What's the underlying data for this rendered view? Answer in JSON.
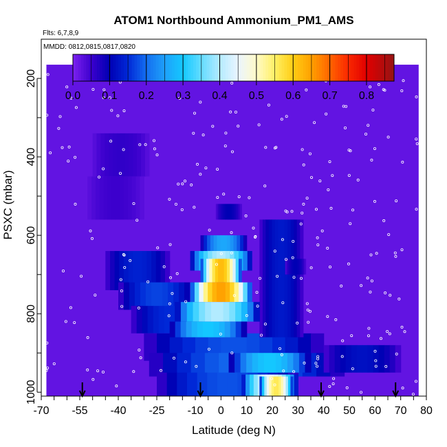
{
  "chart_data": {
    "type": "heatmap",
    "title": "ATOM1 Northbound Ammonium_PM1_AMS",
    "flights_note": "Flts: 6,7,8,9",
    "dates_note": "MMDD: 0812,0815,0817,0820",
    "xlabel": "Latitude (deg N)",
    "ylabel": "PSXC (mbar)",
    "xlim": [
      -70,
      80
    ],
    "ylim": [
      1010,
      100
    ],
    "x_ticks": [
      "-70",
      "-55",
      "-40",
      "-25",
      "-10",
      "0",
      "10",
      "20",
      "30",
      "40",
      "50",
      "60",
      "70",
      "80"
    ],
    "y_ticks": [
      "200",
      "400",
      "600",
      "800",
      "1000"
    ],
    "colorbar": {
      "ticks": [
        "0.0",
        "0.1",
        "0.2",
        "0.3",
        "0.4",
        "0.5",
        "0.6",
        "0.7",
        "0.8"
      ],
      "range": [
        0,
        0.875
      ]
    },
    "background_value": 0.02,
    "field_extent": {
      "lat": [
        -68,
        77
      ],
      "psxc": [
        165,
        1010
      ]
    },
    "arrows_lat": [
      -54,
      -8,
      39,
      68
    ],
    "regions": [
      {
        "lat": [
          -50,
          -28
        ],
        "p": [
          340,
          450
        ],
        "v": 0.06
      },
      {
        "lat": [
          -52,
          -30
        ],
        "p": [
          450,
          560
        ],
        "v": 0.05
      },
      {
        "lat": [
          -45,
          -20
        ],
        "p": [
          640,
          740
        ],
        "v": 0.14
      },
      {
        "lat": [
          -40,
          -10
        ],
        "p": [
          720,
          790
        ],
        "v": 0.17
      },
      {
        "lat": [
          -35,
          -5
        ],
        "p": [
          780,
          850
        ],
        "v": 0.15
      },
      {
        "lat": [
          -30,
          40
        ],
        "p": [
          850,
          920
        ],
        "v": 0.18
      },
      {
        "lat": [
          -28,
          48
        ],
        "p": [
          900,
          960
        ],
        "v": 0.2
      },
      {
        "lat": [
          -25,
          30
        ],
        "p": [
          950,
          1010
        ],
        "v": 0.18
      },
      {
        "lat": [
          40,
          70
        ],
        "p": [
          880,
          950
        ],
        "v": 0.12
      },
      {
        "lat": [
          -2,
          8
        ],
        "p": [
          520,
          560
        ],
        "v": 0.1
      },
      {
        "lat": [
          15,
          32
        ],
        "p": [
          560,
          860
        ],
        "v": 0.13
      },
      {
        "lat": [
          -8,
          10
        ],
        "p": [
          600,
          650
        ],
        "v": 0.26
      },
      {
        "lat": [
          -12,
          12
        ],
        "p": [
          640,
          690
        ],
        "v": 0.4
      },
      {
        "lat": [
          -8,
          8
        ],
        "p": [
          660,
          720
        ],
        "v": 0.62
      },
      {
        "lat": [
          -12,
          12
        ],
        "p": [
          720,
          770
        ],
        "v": 0.65
      },
      {
        "lat": [
          -18,
          15
        ],
        "p": [
          770,
          820
        ],
        "v": 0.4
      },
      {
        "lat": [
          -20,
          10
        ],
        "p": [
          820,
          860
        ],
        "v": 0.3
      },
      {
        "lat": [
          3,
          35
        ],
        "p": [
          900,
          950
        ],
        "v": 0.3
      },
      {
        "lat": [
          8,
          30
        ],
        "p": [
          955,
          1010
        ],
        "v": 0.45
      },
      {
        "lat": [
          15,
          28
        ],
        "p": [
          960,
          1010
        ],
        "v": 0.56
      },
      {
        "lat": [
          25,
          33
        ],
        "p": [
          660,
          700
        ],
        "v": 0.1
      }
    ]
  }
}
